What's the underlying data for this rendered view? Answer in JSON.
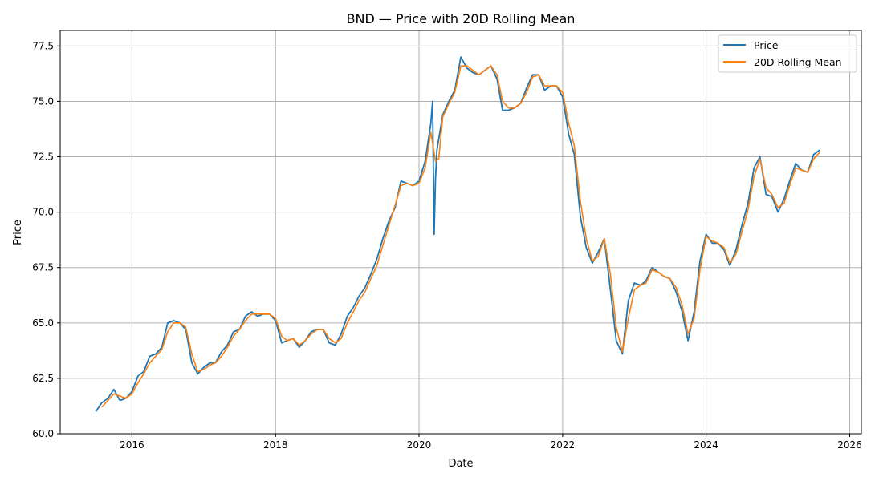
{
  "chart_data": {
    "type": "line",
    "title": "BND — Price with 20D Rolling Mean",
    "xlabel": "Date",
    "ylabel": "Price",
    "xlim": [
      "2015-01-01",
      "2026-03-01"
    ],
    "ylim": [
      60.0,
      78.2
    ],
    "grid": true,
    "legend_position": "top-right",
    "x_ticks": [
      "2016",
      "2018",
      "2020",
      "2022",
      "2024",
      "2026"
    ],
    "y_ticks": [
      "60.0",
      "62.5",
      "65.0",
      "67.5",
      "70.0",
      "72.5",
      "75.0",
      "77.5"
    ],
    "series": [
      {
        "name": "Price",
        "color": "#1f77b4",
        "points": [
          [
            "2015-07-01",
            61.0
          ],
          [
            "2015-08-01",
            61.4
          ],
          [
            "2015-09-01",
            61.6
          ],
          [
            "2015-10-01",
            62.0
          ],
          [
            "2015-11-01",
            61.5
          ],
          [
            "2015-12-01",
            61.6
          ],
          [
            "2016-01-01",
            61.9
          ],
          [
            "2016-02-01",
            62.6
          ],
          [
            "2016-03-01",
            62.8
          ],
          [
            "2016-04-01",
            63.5
          ],
          [
            "2016-05-01",
            63.6
          ],
          [
            "2016-06-01",
            63.9
          ],
          [
            "2016-07-01",
            65.0
          ],
          [
            "2016-08-01",
            65.1
          ],
          [
            "2016-09-01",
            65.0
          ],
          [
            "2016-10-01",
            64.7
          ],
          [
            "2016-11-01",
            63.2
          ],
          [
            "2016-12-01",
            62.7
          ],
          [
            "2017-01-01",
            63.0
          ],
          [
            "2017-02-01",
            63.2
          ],
          [
            "2017-03-01",
            63.2
          ],
          [
            "2017-04-01",
            63.7
          ],
          [
            "2017-05-01",
            64.0
          ],
          [
            "2017-06-01",
            64.6
          ],
          [
            "2017-07-01",
            64.7
          ],
          [
            "2017-08-01",
            65.3
          ],
          [
            "2017-09-01",
            65.5
          ],
          [
            "2017-10-01",
            65.3
          ],
          [
            "2017-11-01",
            65.4
          ],
          [
            "2017-12-01",
            65.4
          ],
          [
            "2018-01-01",
            65.1
          ],
          [
            "2018-02-01",
            64.1
          ],
          [
            "2018-03-01",
            64.2
          ],
          [
            "2018-04-01",
            64.3
          ],
          [
            "2018-05-01",
            63.9
          ],
          [
            "2018-06-01",
            64.2
          ],
          [
            "2018-07-01",
            64.6
          ],
          [
            "2018-08-01",
            64.7
          ],
          [
            "2018-09-01",
            64.7
          ],
          [
            "2018-10-01",
            64.1
          ],
          [
            "2018-11-01",
            64.0
          ],
          [
            "2018-12-01",
            64.5
          ],
          [
            "2019-01-01",
            65.3
          ],
          [
            "2019-02-01",
            65.7
          ],
          [
            "2019-03-01",
            66.2
          ],
          [
            "2019-04-01",
            66.6
          ],
          [
            "2019-05-01",
            67.2
          ],
          [
            "2019-06-01",
            67.9
          ],
          [
            "2019-07-01",
            68.8
          ],
          [
            "2019-08-01",
            69.6
          ],
          [
            "2019-09-01",
            70.2
          ],
          [
            "2019-10-01",
            71.4
          ],
          [
            "2019-11-01",
            71.3
          ],
          [
            "2019-12-01",
            71.2
          ],
          [
            "2020-01-01",
            71.4
          ],
          [
            "2020-02-01",
            72.3
          ],
          [
            "2020-03-01",
            74.0
          ],
          [
            "2020-03-10",
            75.0
          ],
          [
            "2020-03-18",
            69.0
          ],
          [
            "2020-03-25",
            71.5
          ],
          [
            "2020-04-01",
            72.8
          ],
          [
            "2020-05-01",
            74.4
          ],
          [
            "2020-06-01",
            75.0
          ],
          [
            "2020-07-01",
            75.5
          ],
          [
            "2020-08-01",
            77.0
          ],
          [
            "2020-09-01",
            76.5
          ],
          [
            "2020-10-01",
            76.3
          ],
          [
            "2020-11-01",
            76.2
          ],
          [
            "2020-12-01",
            76.4
          ],
          [
            "2021-01-01",
            76.6
          ],
          [
            "2021-02-01",
            76.0
          ],
          [
            "2021-03-01",
            74.6
          ],
          [
            "2021-04-01",
            74.6
          ],
          [
            "2021-05-01",
            74.7
          ],
          [
            "2021-06-01",
            74.9
          ],
          [
            "2021-07-01",
            75.6
          ],
          [
            "2021-08-01",
            76.2
          ],
          [
            "2021-09-01",
            76.2
          ],
          [
            "2021-10-01",
            75.5
          ],
          [
            "2021-11-01",
            75.7
          ],
          [
            "2021-12-01",
            75.7
          ],
          [
            "2022-01-01",
            75.2
          ],
          [
            "2022-02-01",
            73.5
          ],
          [
            "2022-03-01",
            72.6
          ],
          [
            "2022-04-01",
            69.8
          ],
          [
            "2022-05-01",
            68.4
          ],
          [
            "2022-06-01",
            67.7
          ],
          [
            "2022-07-01",
            68.2
          ],
          [
            "2022-08-01",
            68.8
          ],
          [
            "2022-09-01",
            66.5
          ],
          [
            "2022-10-01",
            64.2
          ],
          [
            "2022-11-01",
            63.6
          ],
          [
            "2022-12-01",
            66.0
          ],
          [
            "2023-01-01",
            66.8
          ],
          [
            "2023-02-01",
            66.7
          ],
          [
            "2023-03-01",
            66.9
          ],
          [
            "2023-04-01",
            67.5
          ],
          [
            "2023-05-01",
            67.3
          ],
          [
            "2023-06-01",
            67.1
          ],
          [
            "2023-07-01",
            67.0
          ],
          [
            "2023-08-01",
            66.4
          ],
          [
            "2023-09-01",
            65.5
          ],
          [
            "2023-10-01",
            64.2
          ],
          [
            "2023-11-01",
            65.5
          ],
          [
            "2023-12-01",
            67.8
          ],
          [
            "2024-01-01",
            69.0
          ],
          [
            "2024-02-01",
            68.6
          ],
          [
            "2024-03-01",
            68.6
          ],
          [
            "2024-04-01",
            68.3
          ],
          [
            "2024-05-01",
            67.6
          ],
          [
            "2024-06-01",
            68.3
          ],
          [
            "2024-07-01",
            69.4
          ],
          [
            "2024-08-01",
            70.4
          ],
          [
            "2024-09-01",
            72.0
          ],
          [
            "2024-10-01",
            72.5
          ],
          [
            "2024-11-01",
            70.8
          ],
          [
            "2024-12-01",
            70.7
          ],
          [
            "2025-01-01",
            70.0
          ],
          [
            "2025-02-01",
            70.6
          ],
          [
            "2025-03-01",
            71.4
          ],
          [
            "2025-04-01",
            72.2
          ],
          [
            "2025-05-01",
            71.9
          ],
          [
            "2025-06-01",
            71.8
          ],
          [
            "2025-07-01",
            72.6
          ],
          [
            "2025-08-01",
            72.8
          ]
        ]
      },
      {
        "name": "20D Rolling Mean",
        "color": "#ff7f0e",
        "points": [
          [
            "2015-08-01",
            61.2
          ],
          [
            "2015-09-01",
            61.5
          ],
          [
            "2015-10-01",
            61.8
          ],
          [
            "2015-11-01",
            61.7
          ],
          [
            "2015-12-01",
            61.6
          ],
          [
            "2016-01-01",
            61.8
          ],
          [
            "2016-02-01",
            62.3
          ],
          [
            "2016-03-01",
            62.7
          ],
          [
            "2016-04-01",
            63.2
          ],
          [
            "2016-05-01",
            63.5
          ],
          [
            "2016-06-01",
            63.8
          ],
          [
            "2016-07-01",
            64.6
          ],
          [
            "2016-08-01",
            65.0
          ],
          [
            "2016-09-01",
            65.0
          ],
          [
            "2016-10-01",
            64.8
          ],
          [
            "2016-11-01",
            63.6
          ],
          [
            "2016-12-01",
            62.8
          ],
          [
            "2017-01-01",
            62.9
          ],
          [
            "2017-02-01",
            63.1
          ],
          [
            "2017-03-01",
            63.2
          ],
          [
            "2017-04-01",
            63.5
          ],
          [
            "2017-05-01",
            63.9
          ],
          [
            "2017-06-01",
            64.4
          ],
          [
            "2017-07-01",
            64.7
          ],
          [
            "2017-08-01",
            65.1
          ],
          [
            "2017-09-01",
            65.4
          ],
          [
            "2017-10-01",
            65.4
          ],
          [
            "2017-11-01",
            65.4
          ],
          [
            "2017-12-01",
            65.4
          ],
          [
            "2018-01-01",
            65.2
          ],
          [
            "2018-02-01",
            64.4
          ],
          [
            "2018-03-01",
            64.2
          ],
          [
            "2018-04-01",
            64.3
          ],
          [
            "2018-05-01",
            64.0
          ],
          [
            "2018-06-01",
            64.2
          ],
          [
            "2018-07-01",
            64.5
          ],
          [
            "2018-08-01",
            64.7
          ],
          [
            "2018-09-01",
            64.7
          ],
          [
            "2018-10-01",
            64.3
          ],
          [
            "2018-11-01",
            64.1
          ],
          [
            "2018-12-01",
            64.3
          ],
          [
            "2019-01-01",
            65.0
          ],
          [
            "2019-02-01",
            65.5
          ],
          [
            "2019-03-01",
            66.0
          ],
          [
            "2019-04-01",
            66.4
          ],
          [
            "2019-05-01",
            67.0
          ],
          [
            "2019-06-01",
            67.6
          ],
          [
            "2019-07-01",
            68.5
          ],
          [
            "2019-08-01",
            69.4
          ],
          [
            "2019-09-01",
            70.3
          ],
          [
            "2019-10-01",
            71.2
          ],
          [
            "2019-11-01",
            71.3
          ],
          [
            "2019-12-01",
            71.2
          ],
          [
            "2020-01-01",
            71.3
          ],
          [
            "2020-02-01",
            72.0
          ],
          [
            "2020-03-01",
            73.6
          ],
          [
            "2020-03-25",
            72.3
          ],
          [
            "2020-04-10",
            72.4
          ],
          [
            "2020-05-01",
            74.3
          ],
          [
            "2020-06-01",
            74.9
          ],
          [
            "2020-07-01",
            75.4
          ],
          [
            "2020-08-01",
            76.6
          ],
          [
            "2020-09-01",
            76.6
          ],
          [
            "2020-10-01",
            76.4
          ],
          [
            "2020-11-01",
            76.2
          ],
          [
            "2020-12-01",
            76.4
          ],
          [
            "2021-01-01",
            76.6
          ],
          [
            "2021-02-01",
            76.2
          ],
          [
            "2021-03-01",
            75.0
          ],
          [
            "2021-04-01",
            74.7
          ],
          [
            "2021-05-01",
            74.7
          ],
          [
            "2021-06-01",
            74.9
          ],
          [
            "2021-07-01",
            75.4
          ],
          [
            "2021-08-01",
            76.1
          ],
          [
            "2021-09-01",
            76.2
          ],
          [
            "2021-10-01",
            75.7
          ],
          [
            "2021-11-01",
            75.7
          ],
          [
            "2021-12-01",
            75.7
          ],
          [
            "2022-01-01",
            75.4
          ],
          [
            "2022-02-01",
            74.0
          ],
          [
            "2022-03-01",
            73.0
          ],
          [
            "2022-04-01",
            70.5
          ],
          [
            "2022-05-01",
            68.8
          ],
          [
            "2022-06-01",
            67.8
          ],
          [
            "2022-07-01",
            68.0
          ],
          [
            "2022-08-01",
            68.8
          ],
          [
            "2022-09-01",
            67.2
          ],
          [
            "2022-10-01",
            64.8
          ],
          [
            "2022-11-01",
            63.7
          ],
          [
            "2022-12-01",
            65.2
          ],
          [
            "2023-01-01",
            66.5
          ],
          [
            "2023-02-01",
            66.7
          ],
          [
            "2023-03-01",
            66.8
          ],
          [
            "2023-04-01",
            67.4
          ],
          [
            "2023-05-01",
            67.3
          ],
          [
            "2023-06-01",
            67.1
          ],
          [
            "2023-07-01",
            67.0
          ],
          [
            "2023-08-01",
            66.6
          ],
          [
            "2023-09-01",
            65.8
          ],
          [
            "2023-10-01",
            64.5
          ],
          [
            "2023-11-01",
            65.2
          ],
          [
            "2023-12-01",
            67.4
          ],
          [
            "2024-01-01",
            68.9
          ],
          [
            "2024-02-01",
            68.7
          ],
          [
            "2024-03-01",
            68.6
          ],
          [
            "2024-04-01",
            68.4
          ],
          [
            "2024-05-01",
            67.7
          ],
          [
            "2024-06-01",
            68.1
          ],
          [
            "2024-07-01",
            69.1
          ],
          [
            "2024-08-01",
            70.1
          ],
          [
            "2024-09-01",
            71.6
          ],
          [
            "2024-10-01",
            72.4
          ],
          [
            "2024-11-01",
            71.1
          ],
          [
            "2024-12-01",
            70.8
          ],
          [
            "2025-01-01",
            70.2
          ],
          [
            "2025-02-01",
            70.4
          ],
          [
            "2025-03-01",
            71.2
          ],
          [
            "2025-04-01",
            72.0
          ],
          [
            "2025-05-01",
            71.9
          ],
          [
            "2025-06-01",
            71.8
          ],
          [
            "2025-07-01",
            72.4
          ],
          [
            "2025-08-01",
            72.7
          ]
        ]
      }
    ]
  }
}
